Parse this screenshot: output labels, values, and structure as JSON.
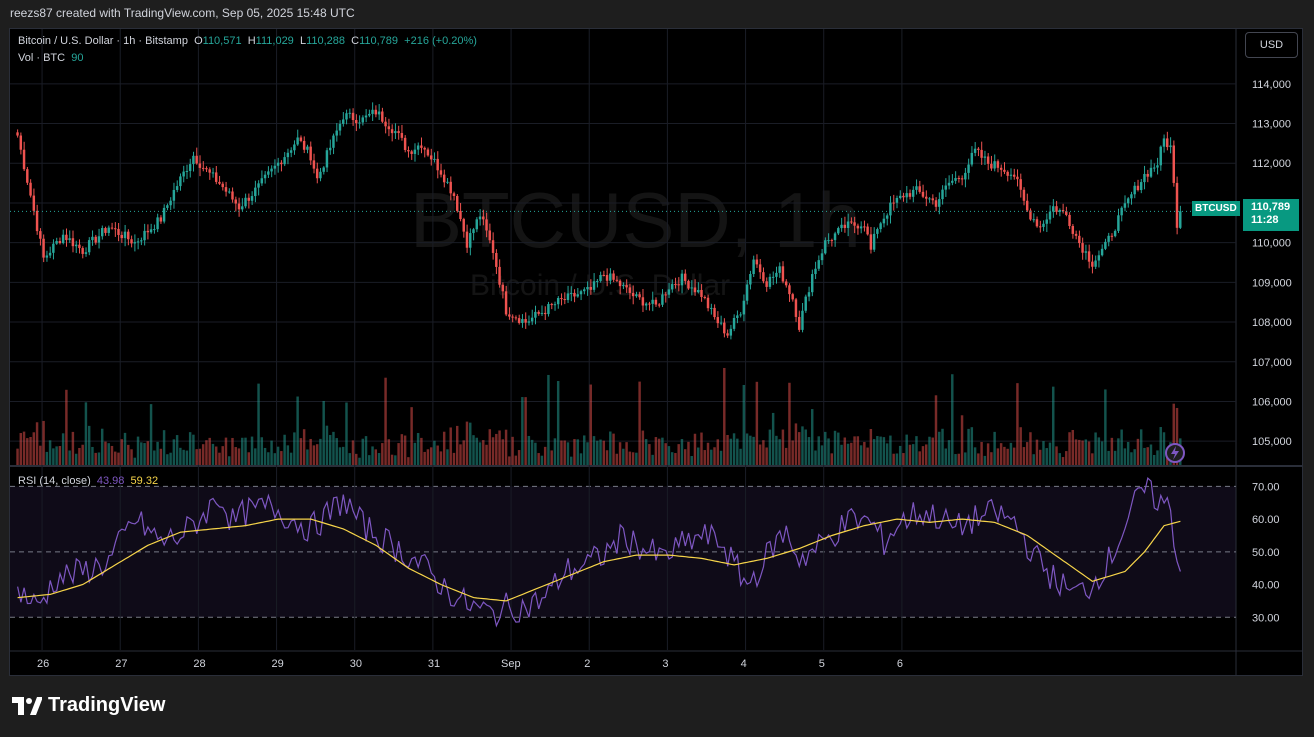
{
  "header": {
    "created_by": "reezs87 created with TradingView.com, Sep 05, 2025 15:48 UTC"
  },
  "legend": {
    "symbol": "Bitcoin / U.S. Dollar · 1h · Bitstamp",
    "o_label": "O",
    "o_value": "110,571",
    "h_label": "H",
    "h_value": "111,029",
    "l_label": "L",
    "l_value": "110,288",
    "c_label": "C",
    "c_value": "110,789",
    "change": "+216 (+0.20%)",
    "vol_label": "Vol · BTC",
    "vol_value": "90"
  },
  "rsi_legend": {
    "label": "RSI (14, close)",
    "rsi_value": "43.98",
    "ma_value": "59.32"
  },
  "currency_button": "USD",
  "price_tag": {
    "price": "110,789",
    "countdown": "11:28",
    "symbol": "BTCUSD"
  },
  "watermark": {
    "symbol": "BTCUSD, 1h",
    "name": "Bitcoin / U.S. Dollar"
  },
  "brand": {
    "name": "TradingView"
  },
  "colors": {
    "up": "#26a69a",
    "down": "#ef5350",
    "rsi": "#7e57c2",
    "rsi_ma": "#f7d54a",
    "background": "#000000"
  },
  "chart_data": [
    {
      "type": "candlestick",
      "title": "Bitcoin / U.S. Dollar · 1h · Bitstamp",
      "x_ticks": [
        "26",
        "27",
        "28",
        "29",
        "30",
        "31",
        "Sep",
        "2",
        "3",
        "4",
        "5",
        "6"
      ],
      "y_ticks": [
        "114,000",
        "113,000",
        "112,000",
        "111,000",
        "110,000",
        "109,000",
        "108,000",
        "107,000",
        "106,000",
        "105,000"
      ],
      "ylim": [
        104400,
        114600
      ],
      "last_price": 110789,
      "close_path": [
        [
          0,
          112700
        ],
        [
          4,
          111200
        ],
        [
          8,
          109600
        ],
        [
          14,
          110200
        ],
        [
          20,
          109800
        ],
        [
          28,
          110400
        ],
        [
          36,
          110000
        ],
        [
          44,
          110600
        ],
        [
          48,
          111300
        ],
        [
          54,
          112200
        ],
        [
          58,
          111800
        ],
        [
          62,
          111500
        ],
        [
          68,
          110900
        ],
        [
          74,
          111400
        ],
        [
          80,
          112000
        ],
        [
          86,
          112600
        ],
        [
          90,
          112200
        ],
        [
          92,
          111600
        ],
        [
          96,
          112400
        ],
        [
          100,
          113200
        ],
        [
          106,
          113100
        ],
        [
          110,
          113300
        ],
        [
          116,
          112800
        ],
        [
          120,
          112300
        ],
        [
          124,
          112500
        ],
        [
          130,
          111800
        ],
        [
          134,
          111200
        ],
        [
          138,
          110000
        ],
        [
          142,
          110700
        ],
        [
          146,
          109800
        ],
        [
          150,
          108300
        ],
        [
          156,
          108000
        ],
        [
          160,
          108200
        ],
        [
          166,
          108500
        ],
        [
          172,
          108700
        ],
        [
          176,
          108800
        ],
        [
          180,
          109200
        ],
        [
          184,
          109000
        ],
        [
          190,
          108600
        ],
        [
          196,
          108400
        ],
        [
          200,
          108900
        ],
        [
          204,
          109100
        ],
        [
          210,
          108700
        ],
        [
          214,
          108100
        ],
        [
          218,
          107700
        ],
        [
          222,
          108300
        ],
        [
          226,
          109600
        ],
        [
          230,
          109000
        ],
        [
          234,
          109300
        ],
        [
          238,
          108600
        ],
        [
          240,
          107900
        ],
        [
          244,
          109200
        ],
        [
          248,
          110000
        ],
        [
          254,
          110400
        ],
        [
          260,
          110500
        ],
        [
          262,
          109800
        ],
        [
          264,
          110400
        ],
        [
          268,
          110900
        ],
        [
          272,
          111200
        ],
        [
          276,
          111300
        ],
        [
          282,
          111000
        ],
        [
          286,
          111500
        ],
        [
          290,
          111700
        ],
        [
          294,
          112300
        ],
        [
          298,
          112000
        ],
        [
          302,
          111900
        ],
        [
          306,
          111700
        ],
        [
          310,
          110800
        ],
        [
          314,
          110400
        ],
        [
          318,
          110900
        ],
        [
          322,
          110700
        ],
        [
          326,
          110000
        ],
        [
          330,
          109500
        ],
        [
          334,
          109900
        ],
        [
          338,
          110600
        ],
        [
          342,
          111200
        ],
        [
          346,
          111700
        ],
        [
          350,
          112000
        ],
        [
          352,
          112600
        ],
        [
          354,
          112400
        ],
        [
          356,
          110500
        ],
        [
          357,
          110789
        ]
      ],
      "n_bars": 358
    },
    {
      "type": "bar",
      "title": "Vol · BTC",
      "last_value": 90,
      "series": [
        {
          "name": "Vol · BTC"
        }
      ]
    },
    {
      "type": "line",
      "title": "RSI (14, close)",
      "y_ticks": [
        "70.00",
        "60.00",
        "50.00",
        "40.00",
        "30.00"
      ],
      "ylim": [
        20,
        75
      ],
      "bands": [
        30,
        50,
        70
      ],
      "series": [
        {
          "name": "RSI",
          "last": 43.98,
          "key_points": [
            [
              0,
              39
            ],
            [
              6,
              33
            ],
            [
              12,
              42
            ],
            [
              20,
              44
            ],
            [
              28,
              47
            ],
            [
              36,
              60
            ],
            [
              44,
              53
            ],
            [
              50,
              55
            ],
            [
              56,
              60
            ],
            [
              62,
              67
            ],
            [
              66,
              59
            ],
            [
              70,
              62
            ],
            [
              78,
              64
            ],
            [
              84,
              60
            ],
            [
              90,
              57
            ],
            [
              96,
              62
            ],
            [
              100,
              66
            ],
            [
              106,
              58
            ],
            [
              112,
              54
            ],
            [
              118,
              50
            ],
            [
              124,
              46
            ],
            [
              130,
              40
            ],
            [
              136,
              35
            ],
            [
              140,
              33
            ],
            [
              146,
              31
            ],
            [
              150,
              33
            ],
            [
              156,
              33
            ],
            [
              162,
              36
            ],
            [
              168,
              44
            ],
            [
              174,
              46
            ],
            [
              180,
              49
            ],
            [
              186,
              55
            ],
            [
              192,
              51
            ],
            [
              198,
              48
            ],
            [
              204,
              52
            ],
            [
              210,
              55
            ],
            [
              216,
              53
            ],
            [
              220,
              46
            ],
            [
              224,
              40
            ],
            [
              228,
              45
            ],
            [
              232,
              52
            ],
            [
              236,
              56
            ],
            [
              240,
              48
            ],
            [
              244,
              50
            ],
            [
              250,
              55
            ],
            [
              256,
              60
            ],
            [
              262,
              59
            ],
            [
              266,
              53
            ],
            [
              270,
              58
            ],
            [
              276,
              62
            ],
            [
              282,
              61
            ],
            [
              288,
              57
            ],
            [
              294,
              60
            ],
            [
              300,
              62
            ],
            [
              306,
              59
            ],
            [
              312,
              49
            ],
            [
              318,
              42
            ],
            [
              324,
              37
            ],
            [
              330,
              40
            ],
            [
              336,
              49
            ],
            [
              342,
              63
            ],
            [
              346,
              69
            ],
            [
              350,
              66
            ],
            [
              354,
              63
            ],
            [
              356,
              48
            ],
            [
              357,
              43.98
            ]
          ]
        },
        {
          "name": "RSI MA",
          "last": 59.32,
          "key_points": [
            [
              0,
              36
            ],
            [
              10,
              37
            ],
            [
              20,
              40
            ],
            [
              30,
              46
            ],
            [
              40,
              52
            ],
            [
              50,
              56
            ],
            [
              60,
              57
            ],
            [
              70,
              58
            ],
            [
              80,
              60
            ],
            [
              90,
              60
            ],
            [
              100,
              57
            ],
            [
              110,
              52
            ],
            [
              120,
              45
            ],
            [
              130,
              40
            ],
            [
              140,
              36
            ],
            [
              150,
              35
            ],
            [
              160,
              39
            ],
            [
              170,
              43
            ],
            [
              180,
              47
            ],
            [
              190,
              49
            ],
            [
              200,
              49
            ],
            [
              210,
              48
            ],
            [
              220,
              46
            ],
            [
              230,
              48
            ],
            [
              240,
              51
            ],
            [
              250,
              55
            ],
            [
              260,
              58
            ],
            [
              270,
              60
            ],
            [
              280,
              59
            ],
            [
              290,
              60
            ],
            [
              300,
              59
            ],
            [
              310,
              55
            ],
            [
              320,
              48
            ],
            [
              330,
              41
            ],
            [
              340,
              44
            ],
            [
              346,
              50
            ],
            [
              352,
              58
            ],
            [
              357,
              59.32
            ]
          ]
        }
      ]
    }
  ]
}
